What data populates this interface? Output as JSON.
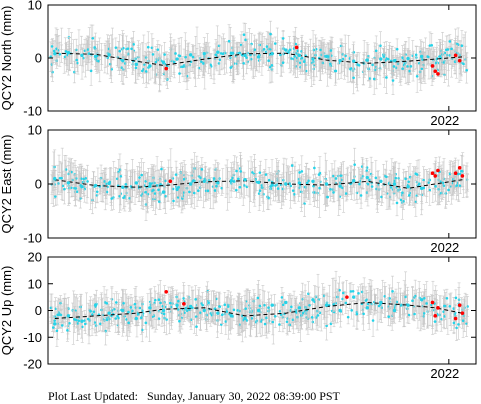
{
  "chart_data": [
    {
      "type": "scatter",
      "ylabel": "QCY2 North (mm)",
      "ylim": [
        -10,
        10
      ],
      "yticks": [
        -10,
        0,
        10
      ],
      "xtick_label": "2022",
      "xlim": [
        2019.05,
        2022.2
      ],
      "xtick": 2022.0,
      "grid": false,
      "error_bars": true,
      "series": [
        {
          "name": "",
          "color": "#26d3e8",
          "x": [
            2019.1,
            2019.2,
            2019.3,
            2019.4,
            2019.5,
            2019.6,
            2019.7,
            2019.8,
            2019.9,
            2020.0,
            2020.1,
            2020.2,
            2020.3,
            2020.4,
            2020.5,
            2020.6,
            2020.7,
            2020.8,
            2020.9,
            2021.0,
            2021.1,
            2021.2,
            2021.3,
            2021.4,
            2021.5,
            2021.6,
            2021.7,
            2021.8
          ],
          "y": [
            0.8,
            1.0,
            0.5,
            0.3,
            0.6,
            -0.5,
            -1.2,
            -1.5,
            -0.8,
            -0.2,
            0.6,
            0.8,
            1.1,
            0.9,
            0.5,
            0.2,
            0.8,
            1.5,
            0.5,
            -0.2,
            0.3,
            -0.5,
            -0.6,
            -0.4,
            -0.2,
            -0.5,
            -0.1,
            0.3
          ]
        },
        {
          "name": "",
          "color": "#ff0000",
          "x": [
            2019.92,
            2020.88,
            2021.88,
            2021.9,
            2021.92,
            2022.05,
            2022.08
          ],
          "y": [
            -2.0,
            2.0,
            -1.5,
            -2.5,
            -3.0,
            0.5,
            -0.5
          ]
        }
      ],
      "model_line": {
        "color": "#000000",
        "style": "dashed",
        "x": [
          2019.1,
          2019.4,
          2019.7,
          2019.9,
          2020.2,
          2020.5,
          2020.8,
          2021.1,
          2021.4,
          2021.7,
          2021.9,
          2022.1
        ],
        "y": [
          0.9,
          0.7,
          -0.6,
          -1.4,
          -0.2,
          0.8,
          0.9,
          -0.4,
          -1.0,
          -0.6,
          -0.2,
          0.2
        ]
      }
    },
    {
      "type": "scatter",
      "ylabel": "QCY2 East (mm)",
      "ylim": [
        -10,
        10
      ],
      "yticks": [
        -10,
        0,
        10
      ],
      "xtick_label": "2022",
      "xlim": [
        2019.05,
        2022.2
      ],
      "xtick": 2022.0,
      "grid": false,
      "error_bars": true,
      "series": [
        {
          "name": "",
          "color": "#26d3e8",
          "x": [
            2019.1,
            2019.2,
            2019.3,
            2019.4,
            2019.5,
            2019.6,
            2019.7,
            2019.8,
            2019.9,
            2020.0,
            2020.1,
            2020.2,
            2020.3,
            2020.4,
            2020.5,
            2020.6,
            2020.7,
            2020.8,
            2020.9,
            2021.0,
            2021.1,
            2021.2,
            2021.3,
            2021.4,
            2021.5,
            2021.6,
            2021.7,
            2021.8
          ],
          "y": [
            1.0,
            0.2,
            -0.5,
            -0.3,
            0.1,
            -0.6,
            0.2,
            -0.4,
            -1.5,
            -1.0,
            0.0,
            0.5,
            0.2,
            0.6,
            0.8,
            0.3,
            -0.2,
            0.0,
            0.2,
            0.5,
            0.0,
            -0.4,
            0.6,
            1.2,
            0.5,
            0.0,
            -0.5,
            -0.8
          ]
        },
        {
          "name": "",
          "color": "#ff0000",
          "x": [
            2019.95,
            2021.88,
            2021.9,
            2021.92,
            2022.05,
            2022.08,
            2022.1
          ],
          "y": [
            0.5,
            2.0,
            1.5,
            2.5,
            2.0,
            3.0,
            1.5
          ]
        }
      ],
      "model_line": {
        "color": "#000000",
        "style": "dashed",
        "x": [
          2019.1,
          2019.4,
          2019.7,
          2019.9,
          2020.2,
          2020.5,
          2020.8,
          2021.1,
          2021.4,
          2021.7,
          2021.9,
          2022.1
        ],
        "y": [
          0.8,
          -0.3,
          -0.6,
          -0.3,
          0.4,
          0.6,
          0.0,
          -0.2,
          0.5,
          -0.8,
          0.0,
          0.8
        ]
      }
    },
    {
      "type": "scatter",
      "ylabel": "QCY2 Up (mm)",
      "ylim": [
        -20,
        20
      ],
      "yticks": [
        -20,
        -10,
        0,
        10,
        20
      ],
      "xtick_label": "2022",
      "xlim": [
        2019.05,
        2022.2
      ],
      "xtick": 2022.0,
      "grid": false,
      "error_bars": true,
      "series": [
        {
          "name": "",
          "color": "#26d3e8",
          "x": [
            2019.1,
            2019.2,
            2019.3,
            2019.4,
            2019.5,
            2019.6,
            2019.7,
            2019.8,
            2019.9,
            2020.0,
            2020.1,
            2020.2,
            2020.3,
            2020.4,
            2020.5,
            2020.6,
            2020.7,
            2020.8,
            2020.9,
            2021.0,
            2021.1,
            2021.2,
            2021.3,
            2021.4,
            2021.5,
            2021.6,
            2021.7,
            2021.8
          ],
          "y": [
            -5.0,
            -2.0,
            -4.0,
            2.0,
            -1.0,
            0.0,
            -3.0,
            1.0,
            0.0,
            2.0,
            1.5,
            0.0,
            -1.0,
            -2.0,
            -3.0,
            0.0,
            2.0,
            3.0,
            1.0,
            4.0,
            2.0,
            0.0,
            5.0,
            1.0,
            3.0,
            0.0,
            2.0,
            4.0
          ]
        },
        {
          "name": "",
          "color": "#ff0000",
          "x": [
            2019.92,
            2020.05,
            2021.25,
            2021.88,
            2021.9,
            2021.92,
            2022.05,
            2022.08,
            2022.1
          ],
          "y": [
            7.0,
            2.5,
            5.0,
            3.0,
            -2.0,
            1.0,
            -3.0,
            2.0,
            -1.0
          ]
        }
      ],
      "model_line": {
        "color": "#000000",
        "style": "dashed",
        "x": [
          2019.1,
          2019.4,
          2019.7,
          2019.9,
          2020.2,
          2020.5,
          2020.8,
          2021.1,
          2021.4,
          2021.7,
          2021.9,
          2022.1
        ],
        "y": [
          -3.0,
          -2.0,
          -1.0,
          0.5,
          1.0,
          -2.0,
          -1.0,
          1.5,
          3.0,
          2.0,
          1.0,
          -1.0
        ]
      }
    }
  ],
  "footer": {
    "text": "Plot Last Updated:   Sunday, January 30, 2022 08:39:00 PST"
  }
}
